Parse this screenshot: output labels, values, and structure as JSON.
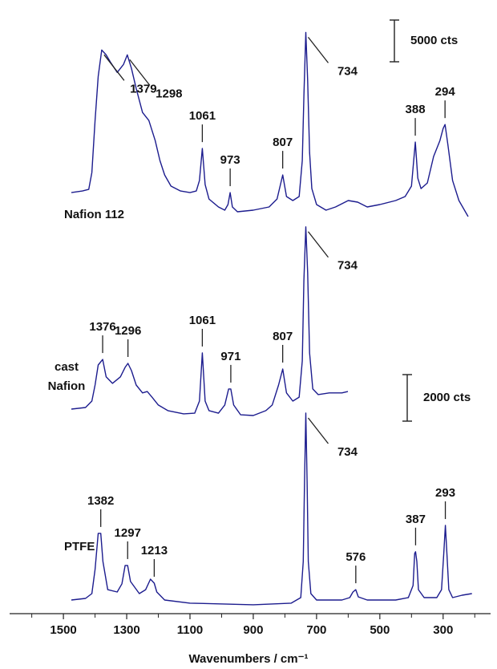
{
  "chart_data": {
    "type": "line",
    "x_label": "Wavenumbers / cm⁻¹",
    "xlim": [
      1670,
      150
    ],
    "xticks": [
      1500,
      1300,
      1100,
      900,
      700,
      500,
      300
    ],
    "xticks_minor": [
      1600,
      1400,
      1200,
      1000,
      800,
      600,
      400,
      200
    ],
    "series": [
      {
        "name": "Nafion 112",
        "color": "#1c1c8e",
        "x": [
          1475,
          1440,
          1420,
          1410,
          1400,
          1390,
          1379,
          1365,
          1350,
          1330,
          1310,
          1298,
          1285,
          1270,
          1250,
          1230,
          1210,
          1195,
          1180,
          1160,
          1130,
          1100,
          1080,
          1070,
          1061,
          1052,
          1040,
          1010,
          990,
          980,
          973,
          966,
          950,
          900,
          850,
          825,
          807,
          795,
          775,
          755,
          745,
          740,
          734,
          728,
          722,
          715,
          700,
          670,
          640,
          600,
          570,
          540,
          500,
          450,
          420,
          400,
          388,
          380,
          370,
          350,
          330,
          310,
          300,
          294,
          285,
          270,
          250,
          221
        ],
        "values": [
          3360,
          3550,
          3740,
          5760,
          12000,
          17280,
          20450,
          19870,
          18910,
          17760,
          18720,
          19870,
          18240,
          15840,
          12960,
          12000,
          9600,
          7200,
          5470,
          4130,
          3550,
          3360,
          3550,
          4800,
          8640,
          4320,
          2590,
          1630,
          1250,
          1920,
          3360,
          1630,
          1060,
          1250,
          1630,
          2590,
          5470,
          2880,
          2400,
          2880,
          7200,
          14880,
          22560,
          16800,
          8160,
          3840,
          1920,
          1250,
          1630,
          2400,
          2210,
          1630,
          1920,
          2400,
          2880,
          4130,
          9410,
          5090,
          3840,
          4510,
          7680,
          9600,
          11040,
          11520,
          9120,
          4800,
          2400,
          480
        ],
        "peaks": [
          1379,
          1298,
          1061,
          973,
          807,
          734,
          388,
          294
        ]
      },
      {
        "name": "cast Nafion",
        "color": "#1c1c8e",
        "x": [
          1475,
          1430,
          1410,
          1400,
          1390,
          1376,
          1365,
          1345,
          1320,
          1305,
          1296,
          1285,
          1270,
          1250,
          1235,
          1220,
          1200,
          1170,
          1120,
          1085,
          1070,
          1061,
          1052,
          1040,
          1010,
          990,
          978,
          971,
          962,
          940,
          900,
          860,
          840,
          820,
          807,
          795,
          775,
          755,
          745,
          740,
          734,
          728,
          722,
          712,
          695,
          660,
          620,
          601
        ],
        "values": [
          345,
          414,
          690,
          1380,
          2240,
          2480,
          1730,
          1450,
          1730,
          2140,
          2310,
          2000,
          1380,
          1040,
          1100,
          860,
          520,
          280,
          140,
          170,
          690,
          2760,
          690,
          280,
          170,
          520,
          1210,
          1210,
          520,
          100,
          70,
          280,
          520,
          1380,
          2070,
          1040,
          690,
          860,
          2420,
          5870,
          8180,
          6210,
          2760,
          1210,
          970,
          1040,
          1040,
          1100
        ],
        "peaks": [
          1376,
          1296,
          1061,
          971,
          807,
          734
        ]
      },
      {
        "name": "PTFE",
        "color": "#1c1c8e",
        "x": [
          1475,
          1430,
          1410,
          1400,
          1390,
          1382,
          1375,
          1360,
          1330,
          1315,
          1305,
          1297,
          1288,
          1260,
          1240,
          1225,
          1213,
          1205,
          1180,
          1100,
          900,
          780,
          750,
          742,
          738,
          734,
          730,
          726,
          718,
          700,
          620,
          595,
          585,
          576,
          568,
          540,
          450,
          410,
          395,
          390,
          387,
          383,
          378,
          360,
          320,
          305,
          298,
          293,
          288,
          282,
          270,
          240,
          209
        ],
        "values": [
          345,
          414,
          620,
          1660,
          3210,
          3210,
          2000,
          790,
          690,
          1040,
          1830,
          1830,
          1140,
          620,
          790,
          1240,
          1070,
          690,
          345,
          210,
          140,
          210,
          450,
          2000,
          5450,
          8380,
          5450,
          2000,
          620,
          345,
          345,
          450,
          690,
          790,
          480,
          345,
          345,
          450,
          970,
          2350,
          2420,
          2000,
          790,
          450,
          450,
          790,
          2350,
          3550,
          2350,
          790,
          450,
          550,
          620
        ],
        "peaks": [
          1382,
          1297,
          1213,
          734,
          576,
          387,
          293
        ]
      }
    ],
    "scale_bars": [
      {
        "value": 5000,
        "label": "5000 cts"
      },
      {
        "value": 2000,
        "label": "2000 cts"
      }
    ]
  }
}
